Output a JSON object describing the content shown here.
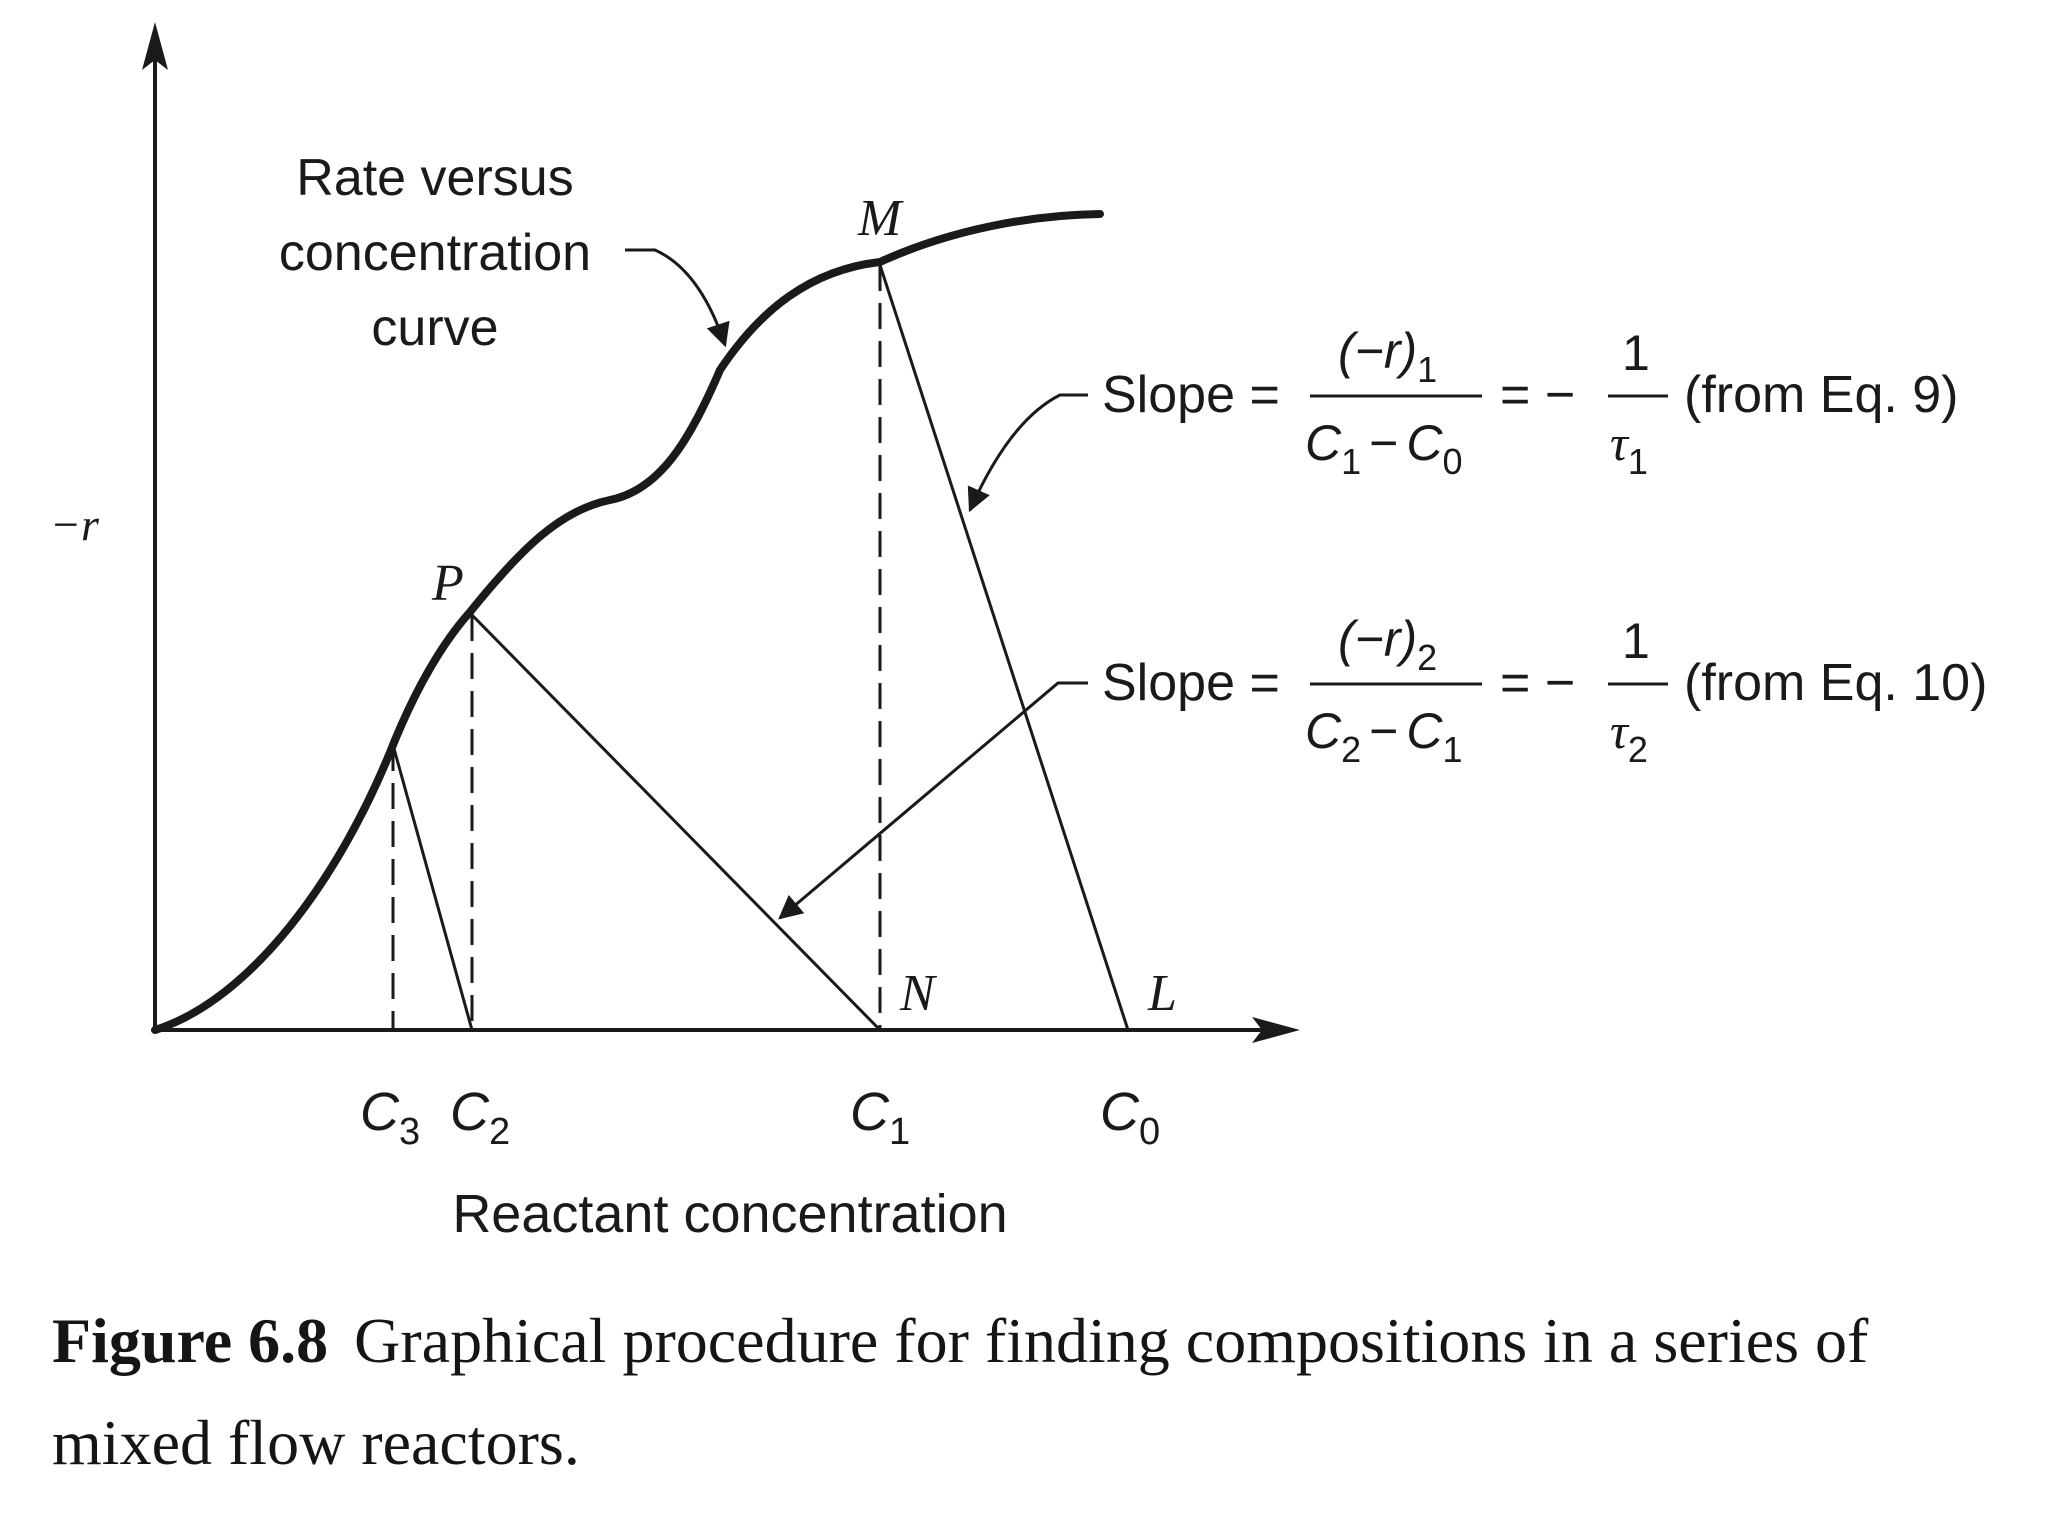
{
  "axes": {
    "y_label": "−r",
    "x_label": "Reactant concentration"
  },
  "curve_label": {
    "line1": "Rate versus",
    "line2": "concentration",
    "line3": "curve"
  },
  "points": {
    "M": "M",
    "P": "P",
    "N": "N",
    "L": "L"
  },
  "ticks": {
    "c3_base": "C",
    "c3_sub": "3",
    "c2_base": "C",
    "c2_sub": "2",
    "c1_base": "C",
    "c1_sub": "1",
    "c0_base": "C",
    "c0_sub": "0"
  },
  "slope1": {
    "prefix": "Slope =",
    "num_base": "(−r)",
    "num_sub": "1",
    "den_a": "C",
    "den_a_sub": "1",
    "den_minus": "−",
    "den_b": "C",
    "den_b_sub": "0",
    "eq": "= −",
    "one": "1",
    "tau": "τ",
    "tau_sub": "1",
    "source": "(from Eq. 9)"
  },
  "slope2": {
    "prefix": "Slope =",
    "num_base": "(−r)",
    "num_sub": "2",
    "den_a": "C",
    "den_a_sub": "2",
    "den_minus": "−",
    "den_b": "C",
    "den_b_sub": "1",
    "eq": "= −",
    "one": "1",
    "tau": "τ",
    "tau_sub": "2",
    "source": "(from Eq. 10)"
  },
  "caption": {
    "label": "Figure 6.8",
    "text": "Graphical procedure for finding compositions in a series of mixed flow reactors."
  },
  "colors": {
    "ink": "#1a1a1a",
    "background": "#ffffff"
  }
}
